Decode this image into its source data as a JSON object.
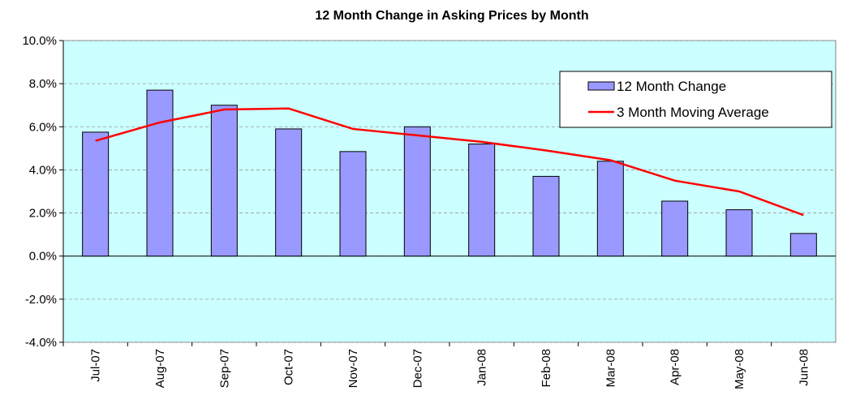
{
  "chart_data": {
    "type": "bar+line",
    "title": "12 Month Change in Asking Prices by Month",
    "categories": [
      "Jul-07",
      "Aug-07",
      "Sep-07",
      "Oct-07",
      "Nov-07",
      "Dec-07",
      "Jan-08",
      "Feb-08",
      "Mar-08",
      "Apr-08",
      "May-08",
      "Jun-08"
    ],
    "series": [
      {
        "name": "12 Month Change",
        "type": "bar",
        "color": "#9999ff",
        "values": [
          5.75,
          7.7,
          7.0,
          5.9,
          4.85,
          6.0,
          5.2,
          3.7,
          4.4,
          2.55,
          2.15,
          1.05
        ]
      },
      {
        "name": "3 Month Moving Average",
        "type": "line",
        "color": "#ff0000",
        "values": [
          5.35,
          6.2,
          6.8,
          6.85,
          5.9,
          5.6,
          5.3,
          4.9,
          4.45,
          3.5,
          3.0,
          1.9
        ]
      }
    ],
    "ylim": [
      -4,
      10
    ],
    "yticks": [
      {
        "value": -4,
        "label": "-4.0%"
      },
      {
        "value": -2,
        "label": "-2.0%"
      },
      {
        "value": 0,
        "label": "0.0%"
      },
      {
        "value": 2,
        "label": "2.0%"
      },
      {
        "value": 4,
        "label": "4.0%"
      },
      {
        "value": 6,
        "label": "6.0%"
      },
      {
        "value": 8,
        "label": "8.0%"
      },
      {
        "value": 10,
        "label": "10.0%"
      }
    ],
    "grid": true,
    "legend": "upper right",
    "plot_background": "#ccffff"
  }
}
